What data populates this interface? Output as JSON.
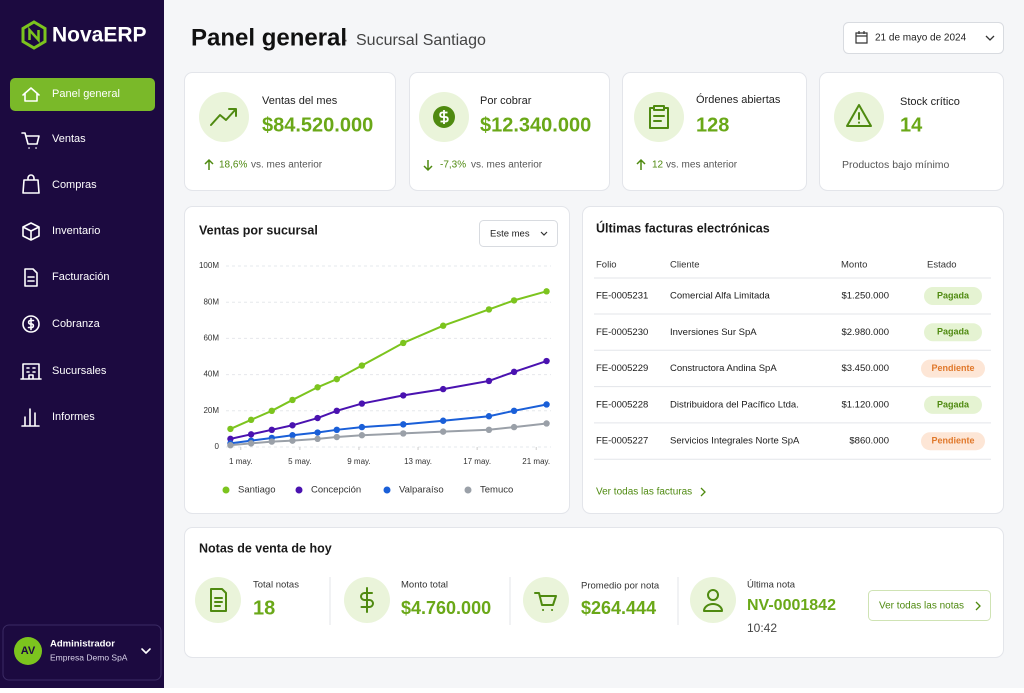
{
  "brand": "NovaERP",
  "nav": [
    "Panel general",
    "Ventas",
    "Compras",
    "Inventario",
    "Facturación",
    "Cobranza",
    "Sucursales",
    "Informes"
  ],
  "user": {
    "initials": "AV",
    "name": "Administrador",
    "company": "Empresa Demo SpA"
  },
  "header": {
    "title": "Panel general",
    "separator": "·",
    "subtitle": "Sucursal Santiago",
    "date": "21 de mayo de 2024"
  },
  "kpis": [
    {
      "label": "Ventas del mes",
      "value": "$84.520.000",
      "change": "18,6%",
      "note": "vs. mes anterior"
    },
    {
      "label": "Por cobrar",
      "value": "$12.340.000",
      "change": "-7,3%",
      "note": "vs. mes anterior"
    },
    {
      "label": "Órdenes abiertas",
      "value": "128",
      "change": "12",
      "note": "vs. mes anterior"
    },
    {
      "label": "Stock crítico",
      "value": "14",
      "note": "Productos bajo mínimo"
    }
  ],
  "chart_data": {
    "type": "line",
    "title": "Ventas por sucursal",
    "filter": "Este mes",
    "x": [
      0.3,
      1.7,
      3.1,
      4.5,
      6.2,
      7.5,
      9.2,
      12,
      14.7,
      17.8,
      19.5,
      21.7
    ],
    "xlim": [
      0,
      22
    ],
    "xticks": [
      {
        "value": 1,
        "label": "1 may."
      },
      {
        "value": 5,
        "label": "5 may."
      },
      {
        "value": 9,
        "label": "9 may."
      },
      {
        "value": 13,
        "label": "13 may."
      },
      {
        "value": 17,
        "label": "17 may."
      },
      {
        "value": 21,
        "label": "21 may."
      }
    ],
    "ylim": [
      0,
      100
    ],
    "yticks": [
      0,
      {
        "value": 20,
        "label": "20M"
      },
      {
        "value": 40,
        "label": "40M"
      },
      {
        "value": 60,
        "label": "60M"
      },
      {
        "value": 80,
        "label": "80M"
      },
      {
        "value": 100,
        "label": "100M"
      }
    ],
    "grid": true,
    "series": [
      {
        "name": "Santiago",
        "color": "#7cc41e",
        "values": [
          10,
          15,
          20,
          26,
          33,
          37.5,
          45,
          57.5,
          67,
          76,
          81,
          86
        ]
      },
      {
        "name": "Concepción",
        "color": "#4a12b0",
        "values": [
          4.5,
          7,
          9.5,
          12,
          16,
          20,
          24,
          28.5,
          32,
          36.5,
          41.5,
          47.5
        ]
      },
      {
        "name": "Valparaíso",
        "color": "#1a5fd8",
        "values": [
          2,
          3.5,
          5,
          6.5,
          8,
          9.5,
          11,
          12.5,
          14.5,
          17,
          20,
          23.5
        ]
      },
      {
        "name": "Temuco",
        "color": "#9aa0a8",
        "values": [
          1,
          2,
          3,
          3.5,
          4.5,
          5.5,
          6.5,
          7.5,
          8.5,
          9.5,
          11,
          13
        ]
      }
    ]
  },
  "invoices": {
    "title": "Últimas facturas electrónicas",
    "columns": [
      "Folio",
      "Cliente",
      "Monto",
      "Estado"
    ],
    "rows": [
      [
        "FE-0005231",
        "Comercial Alfa Limitada",
        "$1.250.000",
        "Pagada"
      ],
      [
        "FE-0005230",
        "Inversiones Sur SpA",
        "$2.980.000",
        "Pagada"
      ],
      [
        "FE-0005229",
        "Constructora Andina SpA",
        "$3.450.000",
        "Pendiente"
      ],
      [
        "FE-0005228",
        "Distribuidora del Pacífico Ltda.",
        "$1.120.000",
        "Pagada"
      ],
      [
        "FE-0005227",
        "Servicios Integrales Norte SpA",
        "$860.000",
        "Pendiente"
      ]
    ],
    "link": "Ver todas las facturas"
  },
  "notes": {
    "title": "Notas de venta de hoy",
    "items": [
      {
        "label": "Total notas",
        "value": "18"
      },
      {
        "label": "Monto total",
        "value": "$4.760.000"
      },
      {
        "label": "Promedio por nota",
        "value": "$264.444"
      },
      {
        "label": "Última nota",
        "value": "NV-0001842",
        "time": "10:42"
      }
    ],
    "button": "Ver todas las notas"
  }
}
